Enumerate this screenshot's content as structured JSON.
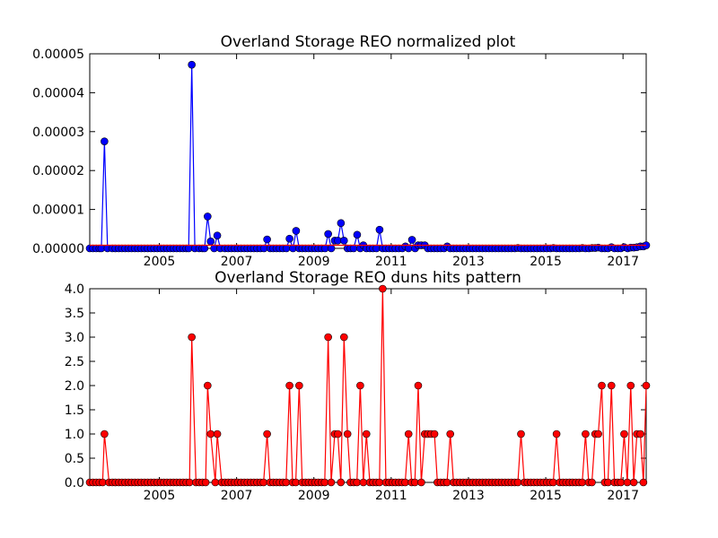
{
  "chart_data": [
    {
      "type": "line",
      "title": "Overland Storage REO normalized plot",
      "xlabel": "",
      "ylabel": "",
      "xlim": [
        2003.2,
        2017.6
      ],
      "ylim": [
        0,
        5e-05
      ],
      "xticks": [
        2005,
        2007,
        2009,
        2011,
        2013,
        2015,
        2017
      ],
      "xtick_labels": [
        "2005",
        "2007",
        "2009",
        "2011",
        "2013",
        "2015",
        "2017"
      ],
      "yticks": [
        0,
        1e-05,
        2e-05,
        3e-05,
        4e-05,
        5e-05
      ],
      "ytick_labels": [
        "0.00000",
        "0.00001",
        "0.00002",
        "0.00003",
        "0.00004",
        "0.00005"
      ],
      "grid": false,
      "series": [
        {
          "color": "#0000ff",
          "marker": "circle",
          "x": [
            2003.2,
            2003.5,
            2003.58,
            2003.66,
            2005.76,
            2005.84,
            2005.92,
            2006.17,
            2006.25,
            2006.33,
            2006.42,
            2006.5,
            2006.58,
            2007.71,
            2007.79,
            2007.87,
            2008.29,
            2008.37,
            2008.46,
            2008.54,
            2008.62,
            2008.7,
            2009.29,
            2009.37,
            2009.45,
            2009.54,
            2009.62,
            2009.7,
            2009.78,
            2009.87,
            2009.95,
            2010.03,
            2010.12,
            2010.2,
            2010.28,
            2010.36,
            2010.45,
            2010.62,
            2010.7,
            2010.78,
            2011.29,
            2011.37,
            2011.45,
            2011.54,
            2011.62,
            2011.7,
            2011.78,
            2011.87,
            2011.95,
            2012.03,
            2012.37,
            2012.45,
            2012.53,
            2014.2,
            2014.28,
            2014.36,
            2015.12,
            2015.2,
            2015.28,
            2015.87,
            2015.95,
            2016.12,
            2016.2,
            2016.28,
            2016.36,
            2016.45,
            2016.53,
            2016.7,
            2016.78,
            2016.87,
            2017.03,
            2017.12,
            2017.2,
            2017.28,
            2017.36,
            2017.45,
            2017.53,
            2017.6
          ],
          "y": [
            0,
            0,
            2.75e-05,
            0,
            0,
            4.72e-05,
            0,
            0,
            8.2e-06,
            1.8e-06,
            0,
            3.3e-06,
            0,
            0,
            2.3e-06,
            0,
            0,
            2.5e-06,
            0,
            4.5e-06,
            0,
            0,
            0,
            3.7e-06,
            0,
            2e-06,
            2e-06,
            6.5e-06,
            2e-06,
            0,
            0,
            0,
            3.5e-06,
            0,
            8e-07,
            0,
            0,
            0,
            4.8e-06,
            0,
            0,
            5e-07,
            0,
            2.2e-06,
            0,
            8e-07,
            8e-07,
            8e-07,
            0,
            0,
            0,
            5e-07,
            0,
            0,
            1e-07,
            0,
            0,
            1e-07,
            0,
            0,
            1e-07,
            0,
            1e-07,
            1e-07,
            2e-07,
            0,
            0,
            3e-07,
            0,
            0,
            3e-07,
            0,
            2e-07,
            2e-07,
            3e-07,
            5e-07,
            5e-07,
            8e-07
          ]
        },
        {
          "color": "#ff0000",
          "marker": "none",
          "x": [
            2003.2,
            2017.6
          ],
          "y": [
            8e-07,
            8e-07
          ]
        }
      ]
    },
    {
      "type": "line",
      "title": "Overland Storage REO duns hits pattern",
      "xlabel": "",
      "ylabel": "",
      "xlim": [
        2003.2,
        2017.6
      ],
      "ylim": [
        0,
        4.0
      ],
      "xticks": [
        2005,
        2007,
        2009,
        2011,
        2013,
        2015,
        2017
      ],
      "xtick_labels": [
        "2005",
        "2007",
        "2009",
        "2011",
        "2013",
        "2015",
        "2017"
      ],
      "yticks": [
        0,
        0.5,
        1.0,
        1.5,
        2.0,
        2.5,
        3.0,
        3.5,
        4.0
      ],
      "ytick_labels": [
        "0.0",
        "0.5",
        "1.0",
        "1.5",
        "2.0",
        "2.5",
        "3.0",
        "3.5",
        "4.0"
      ],
      "grid": false,
      "series": [
        {
          "color": "#ff0000",
          "marker": "circle",
          "x": [
            2003.2,
            2003.58,
            2005.84,
            2006.25,
            2006.33,
            2006.5,
            2007.79,
            2008.37,
            2008.62,
            2009.37,
            2009.54,
            2009.62,
            2009.78,
            2009.87,
            2010.2,
            2010.36,
            2010.78,
            2011.45,
            2011.7,
            2011.87,
            2011.95,
            2012.03,
            2012.12,
            2012.53,
            2014.36,
            2015.28,
            2016.03,
            2016.28,
            2016.36,
            2016.45,
            2016.7,
            2017.03,
            2017.2,
            2017.36,
            2017.45,
            2017.6
          ],
          "y": [
            0,
            1,
            3,
            2,
            1,
            1,
            1,
            2,
            2,
            3,
            1,
            1,
            3,
            1,
            2,
            1,
            4,
            1,
            2,
            1,
            1,
            1,
            1,
            1,
            1,
            1,
            1,
            1,
            1,
            2,
            2,
            1,
            2,
            1,
            1,
            2
          ],
          "fill_zeros_step": 0.0833
        }
      ]
    }
  ]
}
